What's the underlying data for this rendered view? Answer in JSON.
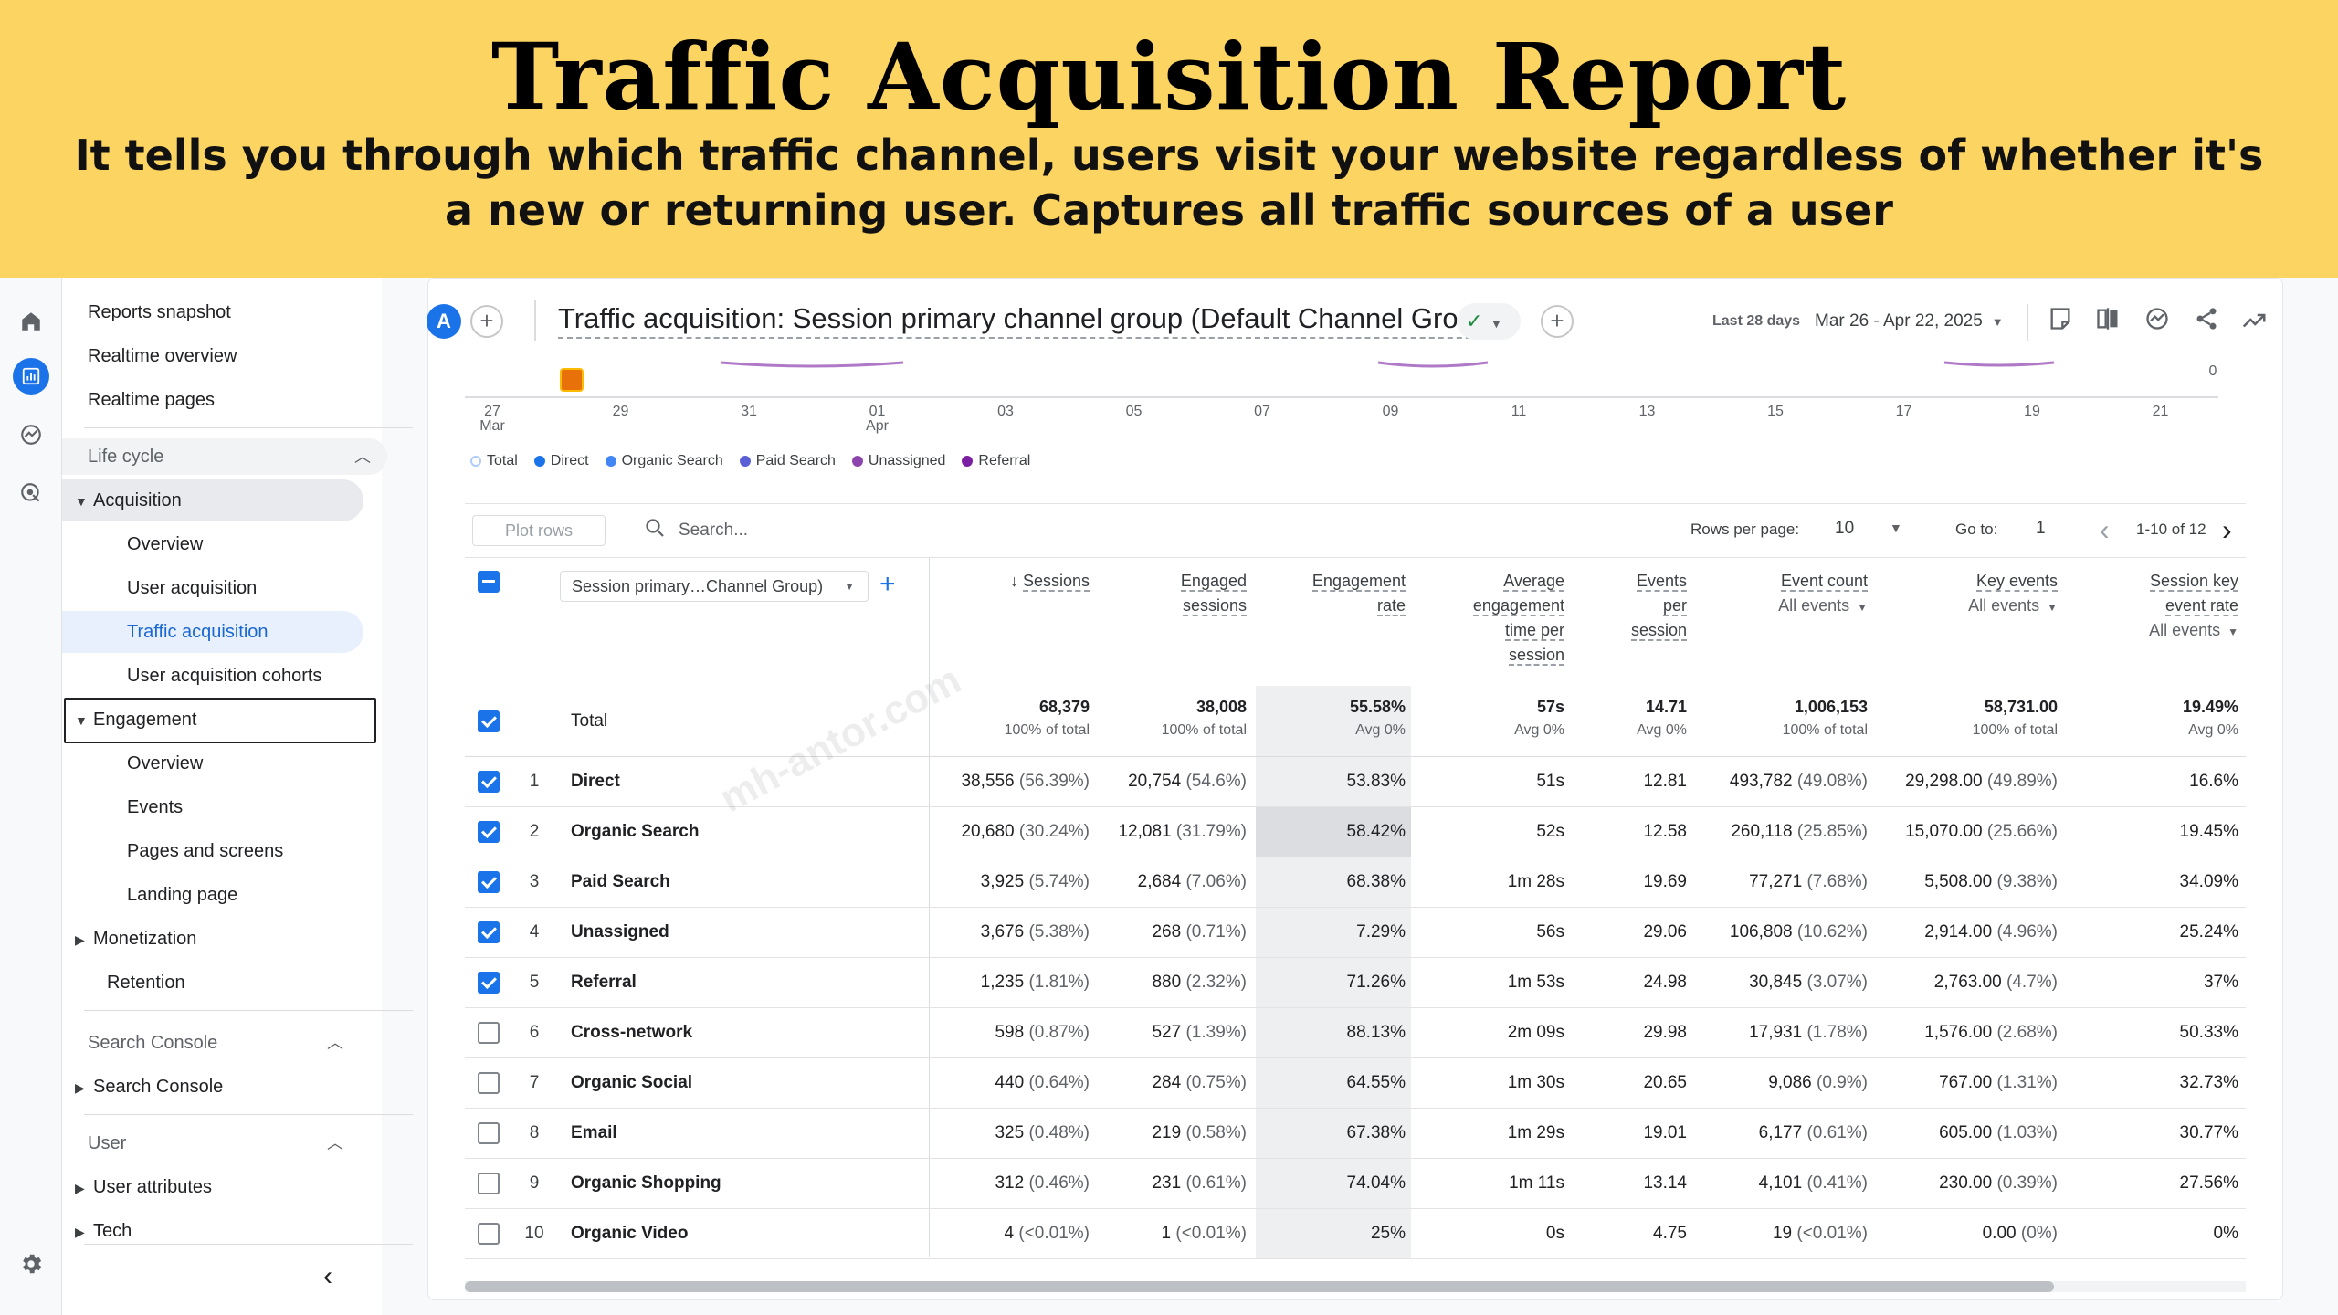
{
  "banner": {
    "title": "Traffic Acquisition Report",
    "subtitle": "It tells you through which traffic channel, users visit your website regardless of whether it's a new or returning user. Captures all traffic sources of a user"
  },
  "rail": {
    "icons": [
      "home-icon",
      "reports-icon",
      "explore-icon",
      "advertising-icon",
      "settings-icon"
    ]
  },
  "nav": {
    "reports_snapshot": "Reports snapshot",
    "realtime_overview": "Realtime overview",
    "realtime_pages": "Realtime pages",
    "lifecycle": "Life cycle",
    "acquisition": "Acquisition",
    "acq_overview": "Overview",
    "user_acquisition": "User acquisition",
    "traffic_acquisition": "Traffic acquisition",
    "user_acq_cohorts": "User acquisition cohorts",
    "engagement": "Engagement",
    "eng_overview": "Overview",
    "events": "Events",
    "pages_screens": "Pages and screens",
    "landing_page": "Landing page",
    "monetization": "Monetization",
    "retention": "Retention",
    "search_console_section": "Search Console",
    "search_console": "Search Console",
    "user_section": "User",
    "user_attributes": "User attributes",
    "tech": "Tech"
  },
  "header": {
    "avatar": "A",
    "title": "Traffic acquisition: Session primary channel group (Default Channel Group)",
    "date_label": "Last 28 days",
    "date_range": "Mar 26 - Apr 22, 2025"
  },
  "chart": {
    "y_zero": "0",
    "x_labels": [
      {
        "top": "27",
        "bottom": "Mar"
      },
      {
        "top": "29",
        "bottom": ""
      },
      {
        "top": "31",
        "bottom": ""
      },
      {
        "top": "01",
        "bottom": "Apr"
      },
      {
        "top": "03",
        "bottom": ""
      },
      {
        "top": "05",
        "bottom": ""
      },
      {
        "top": "07",
        "bottom": ""
      },
      {
        "top": "09",
        "bottom": ""
      },
      {
        "top": "11",
        "bottom": ""
      },
      {
        "top": "13",
        "bottom": ""
      },
      {
        "top": "15",
        "bottom": ""
      },
      {
        "top": "17",
        "bottom": ""
      },
      {
        "top": "19",
        "bottom": ""
      },
      {
        "top": "21",
        "bottom": ""
      }
    ],
    "legend": [
      {
        "label": "Total",
        "color": "#aecbfa"
      },
      {
        "label": "Direct",
        "color": "#1a73e8"
      },
      {
        "label": "Organic Search",
        "color": "#4285f4"
      },
      {
        "label": "Paid Search",
        "color": "#5b5fd6"
      },
      {
        "label": "Unassigned",
        "color": "#8e44ad"
      },
      {
        "label": "Referral",
        "color": "#7b1fa2"
      }
    ]
  },
  "toolbar": {
    "plot_rows": "Plot rows",
    "search_placeholder": "Search...",
    "rows_per_page_label": "Rows per page:",
    "rows_per_page": "10",
    "goto_label": "Go to:",
    "goto_value": "1",
    "page_info": "1-10 of 12"
  },
  "table": {
    "dimension": "Session primary…Channel Group)",
    "headers": {
      "sessions": "Sessions",
      "engaged_1": "Engaged",
      "engaged_2": "sessions",
      "engrate_1": "Engagement",
      "engrate_2": "rate",
      "avg_1": "Average",
      "avg_2": "engagement",
      "avg_3": "time per",
      "avg_4": "session",
      "eps_1": "Events",
      "eps_2": "per",
      "eps_3": "session",
      "ec_1": "Event count",
      "ec_sub": "All events",
      "ke_1": "Key events",
      "ke_sub": "All events",
      "sk_1": "Session key",
      "sk_2": "event rate",
      "sk_sub": "All events"
    },
    "total": {
      "label": "Total",
      "sessions": "68,379",
      "sessions_sub": "100% of total",
      "engaged": "38,008",
      "engaged_sub": "100% of total",
      "rate": "55.58%",
      "rate_sub": "Avg 0%",
      "avg_time": "57s",
      "avg_time_sub": "Avg 0%",
      "eps": "14.71",
      "eps_sub": "Avg 0%",
      "event_count": "1,006,153",
      "event_count_sub": "100% of total",
      "key_events": "58,731.00",
      "key_events_sub": "100% of total",
      "sk_rate": "19.49%",
      "sk_rate_sub": "Avg 0%"
    },
    "rows": [
      {
        "n": "1",
        "name": "Direct",
        "checked": true,
        "sessions": "38,556",
        "sessions_pct": "(56.39%)",
        "engaged": "20,754",
        "engaged_pct": "(54.6%)",
        "rate": "53.83%",
        "avg_time": "51s",
        "eps": "12.81",
        "ec": "493,782",
        "ec_pct": "(49.08%)",
        "ke": "29,298.00",
        "ke_pct": "(49.89%)",
        "sk": "16.6%"
      },
      {
        "n": "2",
        "name": "Organic Search",
        "checked": true,
        "sessions": "20,680",
        "sessions_pct": "(30.24%)",
        "engaged": "12,081",
        "engaged_pct": "(31.79%)",
        "rate": "58.42%",
        "avg_time": "52s",
        "eps": "12.58",
        "ec": "260,118",
        "ec_pct": "(25.85%)",
        "ke": "15,070.00",
        "ke_pct": "(25.66%)",
        "sk": "19.45%"
      },
      {
        "n": "3",
        "name": "Paid Search",
        "checked": true,
        "sessions": "3,925",
        "sessions_pct": "(5.74%)",
        "engaged": "2,684",
        "engaged_pct": "(7.06%)",
        "rate": "68.38%",
        "avg_time": "1m 28s",
        "eps": "19.69",
        "ec": "77,271",
        "ec_pct": "(7.68%)",
        "ke": "5,508.00",
        "ke_pct": "(9.38%)",
        "sk": "34.09%"
      },
      {
        "n": "4",
        "name": "Unassigned",
        "checked": true,
        "sessions": "3,676",
        "sessions_pct": "(5.38%)",
        "engaged": "268",
        "engaged_pct": "(0.71%)",
        "rate": "7.29%",
        "avg_time": "56s",
        "eps": "29.06",
        "ec": "106,808",
        "ec_pct": "(10.62%)",
        "ke": "2,914.00",
        "ke_pct": "(4.96%)",
        "sk": "25.24%"
      },
      {
        "n": "5",
        "name": "Referral",
        "checked": true,
        "sessions": "1,235",
        "sessions_pct": "(1.81%)",
        "engaged": "880",
        "engaged_pct": "(2.32%)",
        "rate": "71.26%",
        "avg_time": "1m 53s",
        "eps": "24.98",
        "ec": "30,845",
        "ec_pct": "(3.07%)",
        "ke": "2,763.00",
        "ke_pct": "(4.7%)",
        "sk": "37%"
      },
      {
        "n": "6",
        "name": "Cross-network",
        "checked": false,
        "sessions": "598",
        "sessions_pct": "(0.87%)",
        "engaged": "527",
        "engaged_pct": "(1.39%)",
        "rate": "88.13%",
        "avg_time": "2m 09s",
        "eps": "29.98",
        "ec": "17,931",
        "ec_pct": "(1.78%)",
        "ke": "1,576.00",
        "ke_pct": "(2.68%)",
        "sk": "50.33%"
      },
      {
        "n": "7",
        "name": "Organic Social",
        "checked": false,
        "sessions": "440",
        "sessions_pct": "(0.64%)",
        "engaged": "284",
        "engaged_pct": "(0.75%)",
        "rate": "64.55%",
        "avg_time": "1m 30s",
        "eps": "20.65",
        "ec": "9,086",
        "ec_pct": "(0.9%)",
        "ke": "767.00",
        "ke_pct": "(1.31%)",
        "sk": "32.73%"
      },
      {
        "n": "8",
        "name": "Email",
        "checked": false,
        "sessions": "325",
        "sessions_pct": "(0.48%)",
        "engaged": "219",
        "engaged_pct": "(0.58%)",
        "rate": "67.38%",
        "avg_time": "1m 29s",
        "eps": "19.01",
        "ec": "6,177",
        "ec_pct": "(0.61%)",
        "ke": "605.00",
        "ke_pct": "(1.03%)",
        "sk": "30.77%"
      },
      {
        "n": "9",
        "name": "Organic Shopping",
        "checked": false,
        "sessions": "312",
        "sessions_pct": "(0.46%)",
        "engaged": "231",
        "engaged_pct": "(0.61%)",
        "rate": "74.04%",
        "avg_time": "1m 11s",
        "eps": "13.14",
        "ec": "4,101",
        "ec_pct": "(0.41%)",
        "ke": "230.00",
        "ke_pct": "(0.39%)",
        "sk": "27.56%"
      },
      {
        "n": "10",
        "name": "Organic Video",
        "checked": false,
        "sessions": "4",
        "sessions_pct": "(<0.01%)",
        "engaged": "1",
        "engaged_pct": "(<0.01%)",
        "rate": "25%",
        "avg_time": "0s",
        "eps": "4.75",
        "ec": "19",
        "ec_pct": "(<0.01%)",
        "ke": "0.00",
        "ke_pct": "(0%)",
        "sk": "0%"
      }
    ]
  },
  "watermark": "mh-antor.com"
}
